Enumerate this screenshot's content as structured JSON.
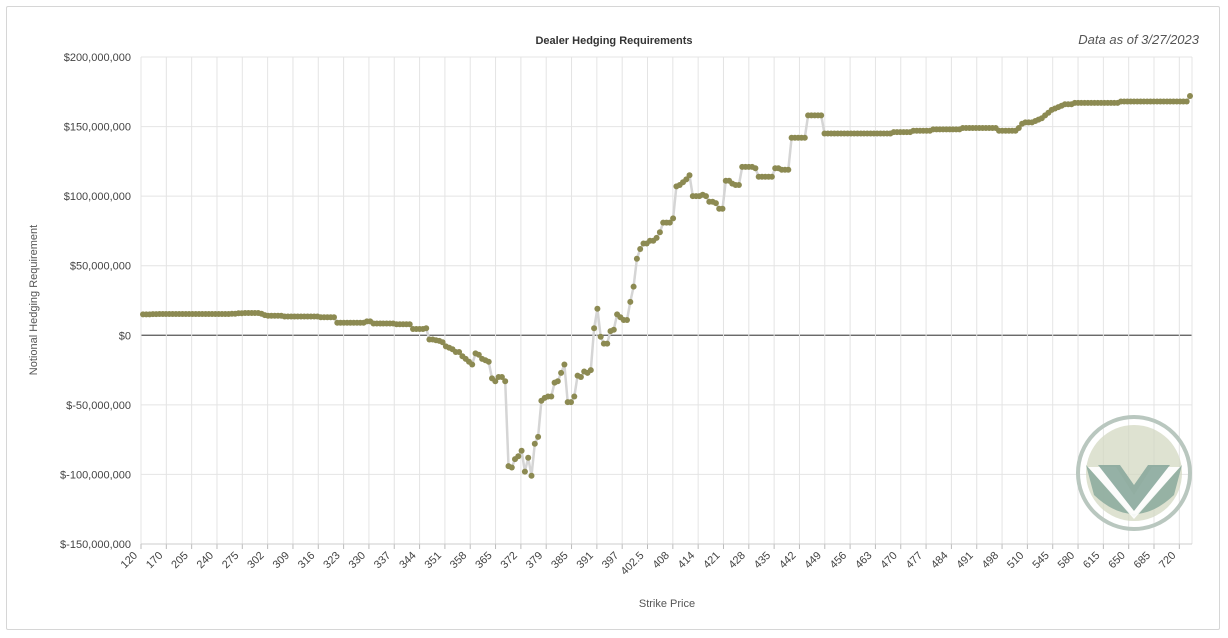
{
  "header": {
    "as_of": "Data as of 3/27/2023"
  },
  "logo": {
    "name": "logo-v-emblem",
    "colors": [
      "#b9c7bf",
      "#d3d8c2",
      "#8aa99c"
    ]
  },
  "colors": {
    "marker": "#8c8a52",
    "line": "#d5d5d5",
    "zero_line": "#555555",
    "grid": "#e4e4e4"
  },
  "chart_data": {
    "type": "line",
    "title": "Dealer Hedging Requirements",
    "xlabel": "Strike Price",
    "ylabel": "Notional Hedging Requirement",
    "ylim": [
      -150000000,
      200000000
    ],
    "yticks": [
      200000000,
      150000000,
      100000000,
      50000000,
      0,
      -50000000,
      -100000000,
      -150000000
    ],
    "ytick_labels": [
      "$200,000,000",
      "$150,000,000",
      "$100,000,000",
      "$50,000,000",
      "$0",
      "$-50,000,000",
      "$-100,000,000",
      "$-150,000,000"
    ],
    "xtick_labels": [
      "120",
      "170",
      "205",
      "240",
      "275",
      "302",
      "309",
      "316",
      "323",
      "330",
      "337",
      "344",
      "351",
      "358",
      "365",
      "372",
      "379",
      "385",
      "391",
      "397",
      "402.5",
      "408",
      "414",
      "421",
      "428",
      "435",
      "442",
      "449",
      "456",
      "463",
      "470",
      "477",
      "484",
      "491",
      "498",
      "510",
      "545",
      "580",
      "615",
      "650",
      "685",
      "720"
    ],
    "grid": true,
    "series": [
      {
        "values": [
          15000000,
          15000000,
          15000000,
          15200000,
          15200000,
          15300000,
          15300000,
          15300000,
          15300000,
          15300000,
          15300000,
          15300000,
          15300000,
          15300000,
          15300000,
          15300000,
          15300000,
          15300000,
          15300000,
          15300000,
          15300000,
          15300000,
          15300000,
          15300000,
          15300000,
          15300000,
          15300000,
          15500000,
          15500000,
          15800000,
          15800000,
          16000000,
          16000000,
          16000000,
          16000000,
          16000000,
          15500000,
          14500000,
          14000000,
          14000000,
          14000000,
          14000000,
          14000000,
          13500000,
          13500000,
          13500000,
          13500000,
          13500000,
          13500000,
          13500000,
          13500000,
          13500000,
          13500000,
          13500000,
          13000000,
          13000000,
          13000000,
          13000000,
          13000000,
          9000000,
          9000000,
          9000000,
          9000000,
          9000000,
          9000000,
          9000000,
          9000000,
          9000000,
          10000000,
          10000000,
          8500000,
          8500000,
          8500000,
          8500000,
          8500000,
          8500000,
          8500000,
          8000000,
          8000000,
          8000000,
          8000000,
          8000000,
          4500000,
          4500000,
          4500000,
          4500000,
          5000000,
          -3000000,
          -3000000,
          -3500000,
          -4000000,
          -5000000,
          -8000000,
          -9000000,
          -10000000,
          -12000000,
          -12000000,
          -15000000,
          -17000000,
          -19000000,
          -21000000,
          -13000000,
          -14000000,
          -17000000,
          -18000000,
          -19000000,
          -31000000,
          -33000000,
          -30000000,
          -30000000,
          -33000000,
          -94000000,
          -95000000,
          -89000000,
          -87000000,
          -83000000,
          -98000000,
          -88000000,
          -101000000,
          -78000000,
          -73000000,
          -47000000,
          -45000000,
          -44000000,
          -44000000,
          -34000000,
          -33000000,
          -27000000,
          -21000000,
          -48000000,
          -48000000,
          -44000000,
          -29000000,
          -30000000,
          -26000000,
          -27000000,
          -25000000,
          5000000,
          19000000,
          -1000000,
          -6000000,
          -6000000,
          3000000,
          4000000,
          15000000,
          13000000,
          11000000,
          11000000,
          24000000,
          35000000,
          55000000,
          62000000,
          66000000,
          66000000,
          68000000,
          68000000,
          70000000,
          74000000,
          81000000,
          81000000,
          81000000,
          84000000,
          107000000,
          108000000,
          110000000,
          112000000,
          115000000,
          100000000,
          100000000,
          100000000,
          101000000,
          100000000,
          96000000,
          96000000,
          95000000,
          91000000,
          91000000,
          111000000,
          111000000,
          109000000,
          108000000,
          108000000,
          121000000,
          121000000,
          121000000,
          121000000,
          120000000,
          114000000,
          114000000,
          114000000,
          114000000,
          114000000,
          120000000,
          120000000,
          119000000,
          119000000,
          119000000,
          142000000,
          142000000,
          142000000,
          142000000,
          142000000,
          158000000,
          158000000,
          158000000,
          158000000,
          158000000,
          145000000,
          145000000,
          145000000,
          145000000,
          145000000,
          145000000,
          145000000,
          145000000,
          145000000,
          145000000,
          145000000,
          145000000,
          145000000,
          145000000,
          145000000,
          145000000,
          145000000,
          145000000,
          145000000,
          145000000,
          145000000,
          146000000,
          146000000,
          146000000,
          146000000,
          146000000,
          146000000,
          147000000,
          147000000,
          147000000,
          147000000,
          147000000,
          147000000,
          148000000,
          148000000,
          148000000,
          148000000,
          148000000,
          148000000,
          148000000,
          148000000,
          148000000,
          149000000,
          149000000,
          149000000,
          149000000,
          149000000,
          149000000,
          149000000,
          149000000,
          149000000,
          149000000,
          149000000,
          147000000,
          147000000,
          147000000,
          147000000,
          147000000,
          147000000,
          149000000,
          152000000,
          153000000,
          153000000,
          153000000,
          154000000,
          155000000,
          156000000,
          158000000,
          160000000,
          162000000,
          163000000,
          164000000,
          165000000,
          166000000,
          166000000,
          166000000,
          167000000,
          167000000,
          167000000,
          167000000,
          167000000,
          167000000,
          167000000,
          167000000,
          167000000,
          167000000,
          167000000,
          167000000,
          167000000,
          167000000,
          168000000,
          168000000,
          168000000,
          168000000,
          168000000,
          168000000,
          168000000,
          168000000,
          168000000,
          168000000,
          168000000,
          168000000,
          168000000,
          168000000,
          168000000,
          168000000,
          168000000,
          168000000,
          168000000,
          168000000,
          168000000,
          172000000
        ]
      }
    ]
  }
}
